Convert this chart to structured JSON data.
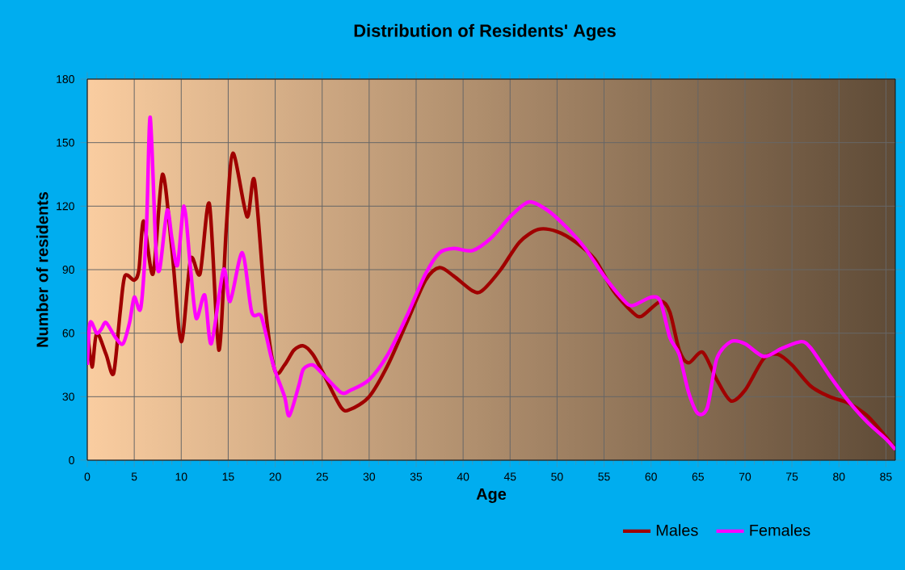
{
  "chart_data": {
    "type": "line",
    "title": "Distribution of Residents' Ages",
    "xlabel": "Age",
    "ylabel": "Number of residents",
    "xlim": [
      0,
      86
    ],
    "ylim": [
      0,
      180
    ],
    "xticks": [
      0,
      5,
      10,
      15,
      20,
      25,
      30,
      35,
      40,
      45,
      50,
      55,
      60,
      65,
      70,
      75,
      80,
      85
    ],
    "yticks": [
      0,
      30,
      60,
      90,
      120,
      150,
      180
    ],
    "grid": true,
    "legend": "bottom",
    "marker": "none",
    "line_style": "solid",
    "series": [
      {
        "name": "Males",
        "color": "#a00000",
        "x": [
          0,
          0.5,
          1,
          2,
          2.8,
          3.5,
          4,
          5,
          5.5,
          6,
          7,
          8,
          9,
          10,
          11,
          12,
          13,
          14,
          14.8,
          15.5,
          17,
          17.8,
          19,
          20,
          21,
          22,
          23,
          24,
          25,
          27,
          28,
          30,
          32,
          34,
          36,
          37.5,
          39,
          41,
          42,
          44,
          46,
          48,
          50,
          52,
          54,
          56,
          58,
          59,
          61,
          62,
          63,
          64,
          65.5,
          67,
          68.5,
          70,
          72,
          73.5,
          75,
          77,
          79,
          81,
          83,
          85,
          86
        ],
        "values": [
          62,
          44,
          60,
          50,
          41,
          70,
          87,
          85,
          90,
          113,
          88,
          135,
          100,
          56,
          95,
          88,
          121,
          52,
          110,
          145,
          115,
          132,
          70,
          42,
          45,
          52,
          54,
          50,
          42,
          25,
          24,
          30,
          45,
          65,
          85,
          91,
          87,
          80,
          80,
          90,
          103,
          109,
          108,
          103,
          95,
          80,
          70,
          68,
          75,
          70,
          52,
          46,
          51,
          38,
          28,
          33,
          48,
          50,
          45,
          35,
          30,
          27,
          21,
          11,
          5
        ]
      },
      {
        "name": "Females",
        "color": "#ff00ff",
        "x": [
          0,
          0.3,
          1,
          1.5,
          2,
          3,
          3.8,
          4.5,
          5,
          5.7,
          6.3,
          6.7,
          7.3,
          7.7,
          8.5,
          9,
          9.6,
          10.3,
          11,
          11.6,
          12.5,
          13.2,
          14.5,
          15.2,
          16.5,
          17.5,
          18.5,
          19.5,
          20,
          21,
          21.5,
          22.5,
          23,
          24,
          25,
          27,
          28,
          30,
          32,
          34,
          36,
          37.5,
          39,
          41,
          43,
          45,
          47,
          49,
          51,
          53,
          55,
          57,
          58,
          60,
          61,
          62,
          63,
          64,
          65,
          66,
          67,
          68.5,
          70,
          72,
          74,
          76,
          77,
          79,
          81,
          83,
          85,
          86
        ],
        "values": [
          45,
          65,
          60,
          62,
          65,
          58,
          55,
          65,
          77,
          72,
          110,
          162,
          100,
          90,
          118,
          105,
          92,
          120,
          90,
          67,
          78,
          55,
          90,
          75,
          98,
          70,
          68,
          50,
          42,
          30,
          21,
          35,
          43,
          45,
          41,
          32,
          33,
          38,
          50,
          68,
          88,
          98,
          100,
          99,
          105,
          115,
          122,
          118,
          110,
          100,
          87,
          76,
          73,
          77,
          75,
          58,
          50,
          32,
          22,
          25,
          48,
          56,
          55,
          49,
          53,
          56,
          53,
          40,
          28,
          18,
          10,
          5
        ]
      }
    ]
  }
}
